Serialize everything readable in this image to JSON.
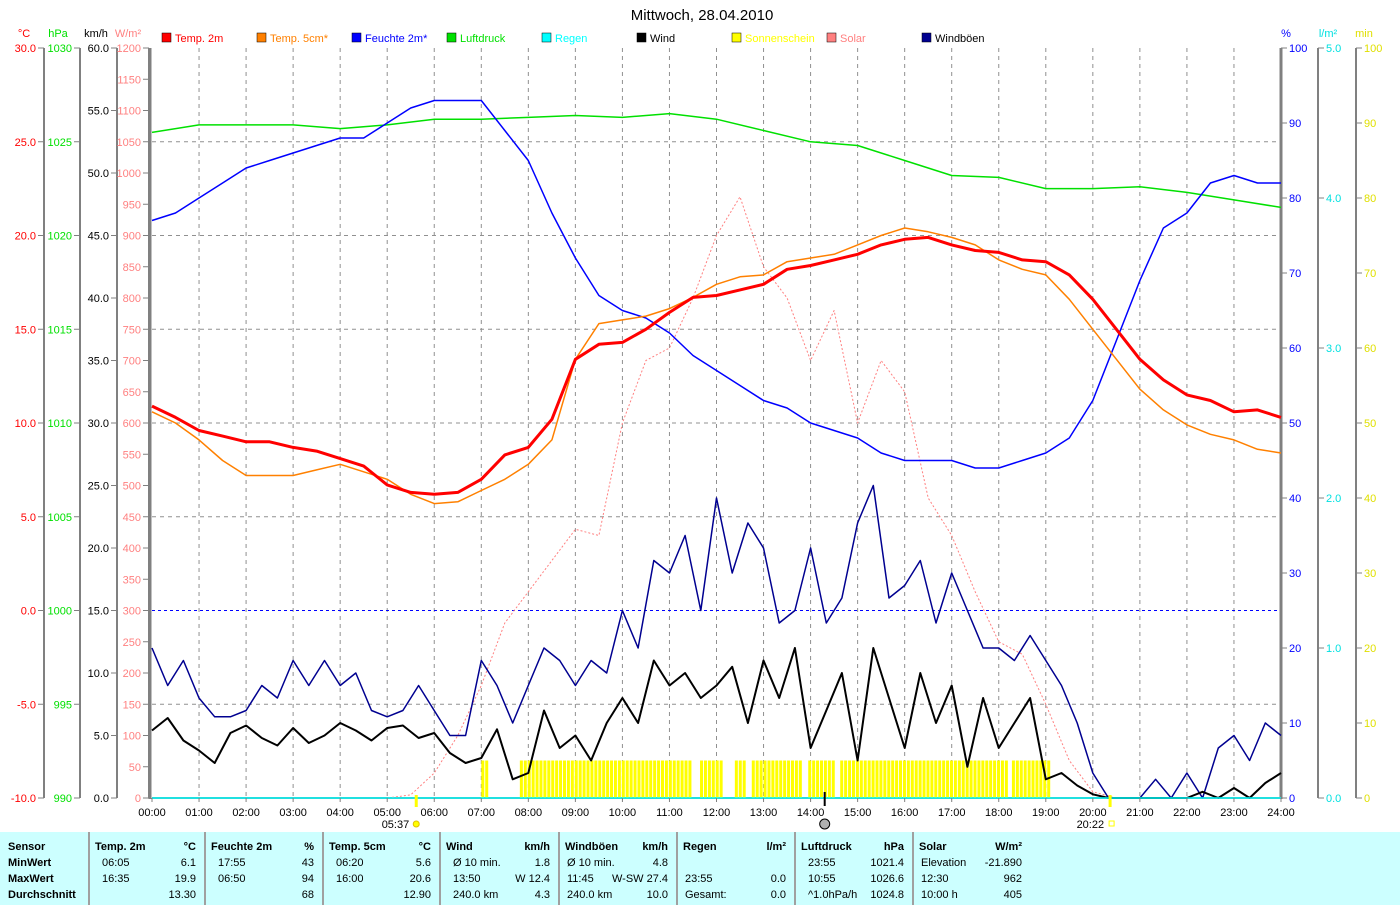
{
  "title": "Mittwoch, 28.04.2010",
  "colors": {
    "temp2m": "#ff0000",
    "temp5cm": "#ff8000",
    "humidity": "#0000ff",
    "pressure": "#00e000",
    "rain": "#00ffff",
    "wind": "#000000",
    "sunshine": "#ffff00",
    "solar": "#ff8080",
    "gusts": "#000090"
  },
  "legend": [
    {
      "label": "Temp. 2m",
      "key": "temp2m"
    },
    {
      "label": "Temp. 5cm*",
      "key": "temp5cm"
    },
    {
      "label": "Feuchte 2m*",
      "key": "humidity"
    },
    {
      "label": "Luftdruck",
      "key": "pressure"
    },
    {
      "label": "Regen",
      "key": "rain"
    },
    {
      "label": "Wind",
      "key": "wind"
    },
    {
      "label": "Sonnenschein",
      "key": "sunshine"
    },
    {
      "label": "Solar",
      "key": "solar"
    },
    {
      "label": "Windböen",
      "key": "gusts"
    }
  ],
  "chart_data": {
    "type": "line",
    "title": "Mittwoch, 28.04.2010",
    "x_unit": "hour",
    "xlim": [
      0,
      24
    ],
    "x_ticks": [
      "00:00",
      "01:00",
      "02:00",
      "03:00",
      "04:00",
      "05:00",
      "06:00",
      "07:00",
      "08:00",
      "09:00",
      "10:00",
      "11:00",
      "12:00",
      "13:00",
      "14:00",
      "15:00",
      "16:00",
      "17:00",
      "18:00",
      "19:00",
      "20:00",
      "21:00",
      "22:00",
      "23:00",
      "24:00"
    ],
    "grid": true,
    "axes": {
      "temp": {
        "unit": "°C",
        "min": -10,
        "max": 30,
        "step": 5,
        "decimals": 1,
        "color": "#ff0000"
      },
      "pressure": {
        "unit": "hPa",
        "min": 990,
        "max": 1030,
        "step": 5,
        "decimals": 0,
        "color": "#00e000"
      },
      "wind": {
        "unit": "km/h",
        "min": 0,
        "max": 60,
        "step": 5,
        "decimals": 1,
        "color": "#000000"
      },
      "solar": {
        "unit": "W/m²",
        "min": 0,
        "max": 1200,
        "step": 50,
        "decimals": 0,
        "color": "#ff8080"
      },
      "humidity": {
        "unit": "%",
        "min": 0,
        "max": 100,
        "step": 10,
        "decimals": 0,
        "color": "#0000ff"
      },
      "rain": {
        "unit": "l/m²",
        "min": 0,
        "max": 5,
        "step": 1,
        "decimals": 1,
        "color": "#00e0e0"
      },
      "sunshine": {
        "unit": "min",
        "min": 0,
        "max": 100,
        "step": 10,
        "decimals": 0,
        "color": "#e0e000"
      }
    },
    "series": [
      {
        "name": "Temp. 2m",
        "axis": "temp",
        "key": "temp2m",
        "x_step_h": 0.5,
        "values": [
          10.9,
          10.3,
          9.6,
          9.3,
          9.0,
          9.0,
          8.7,
          8.5,
          8.1,
          7.7,
          6.7,
          6.3,
          6.2,
          6.3,
          7.0,
          8.3,
          8.7,
          10.2,
          13.4,
          14.2,
          14.3,
          15.0,
          15.9,
          16.7,
          16.8,
          17.1,
          17.4,
          18.2,
          18.4,
          18.7,
          19.0,
          19.5,
          19.8,
          19.9,
          19.5,
          19.2,
          19.1,
          18.7,
          18.6,
          17.9,
          16.6,
          15.0,
          13.4,
          12.3,
          11.5,
          11.2,
          10.6,
          10.7,
          10.3
        ]
      },
      {
        "name": "Temp. 5cm*",
        "axis": "temp",
        "key": "temp5cm",
        "x_step_h": 0.5,
        "values": [
          10.6,
          10.0,
          9.1,
          8.0,
          7.2,
          7.2,
          7.2,
          7.5,
          7.8,
          7.4,
          7.0,
          6.2,
          5.7,
          5.8,
          6.4,
          7.0,
          7.8,
          9.1,
          13.4,
          15.3,
          15.5,
          15.7,
          16.1,
          16.7,
          17.4,
          17.8,
          17.9,
          18.6,
          18.8,
          19.0,
          19.5,
          20.0,
          20.4,
          20.2,
          19.9,
          19.5,
          18.7,
          18.2,
          17.9,
          16.6,
          15.0,
          13.4,
          11.8,
          10.7,
          9.9,
          9.4,
          9.1,
          8.6,
          8.4
        ]
      },
      {
        "name": "Feuchte 2m*",
        "axis": "humidity",
        "key": "humidity",
        "x_step_h": 0.5,
        "values": [
          77,
          78,
          80,
          82,
          84,
          85,
          86,
          87,
          88,
          88,
          90,
          92,
          93,
          93,
          93,
          89,
          85,
          78,
          72,
          67,
          65,
          64,
          62,
          59,
          57,
          55,
          53,
          52,
          50,
          49,
          48,
          46,
          45,
          45,
          45,
          44,
          44,
          45,
          46,
          48,
          53,
          61,
          69,
          76,
          78,
          82,
          83,
          82,
          82
        ]
      },
      {
        "name": "Luftdruck",
        "axis": "pressure",
        "key": "pressure",
        "x_step_h": 1,
        "values": [
          1025.5,
          1025.9,
          1025.9,
          1025.9,
          1025.7,
          1025.9,
          1026.2,
          1026.2,
          1026.3,
          1026.4,
          1026.3,
          1026.5,
          1026.2,
          1025.6,
          1025.0,
          1024.8,
          1024.0,
          1023.2,
          1023.1,
          1022.5,
          1022.5,
          1022.6,
          1022.3,
          1021.9,
          1021.5
        ]
      },
      {
        "name": "Wind",
        "axis": "wind",
        "key": "wind",
        "x_step_h": 0.3333333,
        "values": [
          5.4,
          6.4,
          4.6,
          3.8,
          2.8,
          5.2,
          5.8,
          4.8,
          4.2,
          5.6,
          4.4,
          5.0,
          6.0,
          5.4,
          4.6,
          5.6,
          5.8,
          4.8,
          5.2,
          3.6,
          2.8,
          3.2,
          5.5,
          1.5,
          2.0,
          7.0,
          4.0,
          5.0,
          3.0,
          6.0,
          8.0,
          6.0,
          11.0,
          9.0,
          10.0,
          8.0,
          9.0,
          10.5,
          6.0,
          11.0,
          8.0,
          12.0,
          4.0,
          7.0,
          10.0,
          3.0,
          12.0,
          8.0,
          4.0,
          10.0,
          6.0,
          9.0,
          2.5,
          8.0,
          4.0,
          6.0,
          8.0,
          1.5,
          2.0,
          1.0,
          0.3,
          0,
          0,
          0,
          0,
          0,
          0,
          0.5,
          0,
          0.8,
          0,
          1.2,
          2.0
        ]
      },
      {
        "name": "Windböen",
        "axis": "wind",
        "key": "gusts",
        "x_step_h": 0.3333333,
        "values": [
          12,
          9,
          11,
          8,
          6.5,
          6.5,
          7,
          9,
          8,
          11,
          9,
          11,
          9,
          10,
          7,
          6.5,
          7,
          9,
          7,
          5,
          5,
          11,
          9,
          6,
          9,
          12,
          11,
          9,
          11,
          10,
          15,
          12,
          19,
          18,
          21,
          15,
          24,
          18,
          22,
          20,
          14,
          15,
          20,
          14,
          16,
          22,
          25,
          16,
          17,
          19,
          14,
          18,
          15,
          12,
          12,
          11,
          13,
          11,
          9,
          6,
          2,
          0,
          0,
          0,
          1.5,
          0,
          2,
          0,
          4,
          5,
          3,
          6,
          5
        ]
      },
      {
        "name": "Solar",
        "axis": "solar",
        "key": "solar",
        "x_step_h": 0.5,
        "style": "dotted",
        "values": [
          0,
          0,
          0,
          0,
          0,
          0,
          0,
          0,
          0,
          0,
          0,
          5,
          40,
          100,
          180,
          280,
          330,
          380,
          430,
          420,
          600,
          700,
          720,
          800,
          900,
          962,
          850,
          800,
          700,
          780,
          600,
          700,
          650,
          480,
          420,
          330,
          250,
          230,
          150,
          60,
          10,
          0,
          0,
          0,
          0,
          0,
          0,
          0,
          0
        ]
      },
      {
        "name": "Regen",
        "axis": "rain",
        "key": "rain",
        "x_step_h": 24,
        "values": [
          0,
          0
        ]
      }
    ],
    "sunshine_intervals_h": [
      [
        7.0,
        7.1
      ],
      [
        7.82,
        11.48
      ],
      [
        11.65,
        12.07
      ],
      [
        12.39,
        12.6
      ],
      [
        12.75,
        13.78
      ],
      [
        13.95,
        14.5
      ],
      [
        14.63,
        18.13
      ],
      [
        18.28,
        19.09
      ]
    ],
    "sunshine_minutes_per_bar": 5,
    "reference_line": {
      "axis": "temp",
      "value": 0
    },
    "sunrise": "05:37",
    "sunset": "20:22",
    "sunrise_h": 5.617,
    "sunset_h": 20.367,
    "moon_h": 14.3
  },
  "stats": {
    "sensor": {
      "header": "Sensor",
      "rows": [
        "MinWert",
        "MaxWert",
        "Durchschnitt"
      ]
    },
    "columns": [
      {
        "name": "Temp. 2m",
        "unit": "°C",
        "rows": [
          [
            "06:05",
            "6.1"
          ],
          [
            "16:35",
            "19.9"
          ],
          [
            "",
            "13.30"
          ]
        ]
      },
      {
        "name": "Feuchte 2m",
        "unit": "%",
        "rows": [
          [
            "17:55",
            "43"
          ],
          [
            "06:50",
            "94"
          ],
          [
            "",
            "68"
          ]
        ]
      },
      {
        "name": "Temp. 5cm",
        "unit": "°C",
        "rows": [
          [
            "06:20",
            "5.6"
          ],
          [
            "16:00",
            "20.6"
          ],
          [
            "",
            "12.90"
          ]
        ]
      },
      {
        "name": "Wind",
        "unit": "km/h",
        "rows": [
          [
            "Ø 10 min.",
            "1.8"
          ],
          [
            "13:50",
            "W 12.4"
          ],
          [
            "240.0 km",
            "4.3"
          ]
        ]
      },
      {
        "name": "Windböen",
        "unit": "km/h",
        "rows": [
          [
            "Ø 10 min.",
            "4.8"
          ],
          [
            "11:45",
            "W-SW 27.4"
          ],
          [
            "240.0 km",
            "10.0"
          ]
        ]
      },
      {
        "name": "Regen",
        "unit": "l/m²",
        "rows": [
          [
            "",
            ""
          ],
          [
            "23:55",
            "0.0"
          ],
          [
            "Gesamt:",
            "0.0"
          ]
        ]
      },
      {
        "name": "Luftdruck",
        "unit": "hPa",
        "rows": [
          [
            "23:55",
            "1021.4"
          ],
          [
            "10:55",
            "1026.6"
          ],
          [
            "^1.0hPa/h",
            "1024.8"
          ]
        ]
      },
      {
        "name": "Solar",
        "unit": "W/m²",
        "rows": [
          [
            "Elevation",
            "-21.890"
          ],
          [
            "12:30",
            "962"
          ],
          [
            "10:00 h",
            "405"
          ]
        ]
      }
    ]
  }
}
